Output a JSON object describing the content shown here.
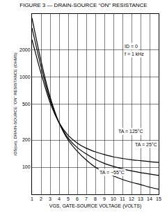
{
  "chart_data": {
    "type": "line",
    "title": "FIGURE 3 — DRAIN-SOURCE “ON” RESISTANCE",
    "x_label": "VGS, GATE-SOURCE VOLTAGE (VOLTS)",
    "y_label": "rDS(on), DRAIN-SOURCE “ON” RESISTANCE (OHMS)",
    "annotations": [
      "ID = 0",
      "f = 1 kHz"
    ],
    "x": [
      1,
      2,
      3,
      4,
      5,
      6,
      7,
      8,
      9,
      10,
      11,
      12,
      13,
      14,
      15
    ],
    "series": [
      {
        "name": "TA = 125°C",
        "color": "#000000",
        "values": [
          2600,
          1100,
          520,
          310,
          225,
          185,
          162,
          148,
          138,
          130,
          125,
          121,
          118,
          115,
          113
        ]
      },
      {
        "name": "TA = 25°C",
        "color": "#000000",
        "values": [
          3500,
          1300,
          560,
          310,
          210,
          165,
          140,
          122,
          110,
          102,
          96,
          91,
          87,
          84,
          81
        ]
      },
      {
        "name": "TA = −55°C",
        "color": "#000000",
        "values": [
          4500,
          1500,
          600,
          310,
          200,
          150,
          120,
          100,
          88,
          80,
          73,
          68,
          64,
          60,
          57
        ]
      }
    ],
    "xlim": [
      1,
      15
    ],
    "xticks": [
      1,
      2,
      3,
      4,
      5,
      6,
      7,
      8,
      9,
      10,
      11,
      12,
      13,
      14,
      15
    ],
    "ylim": [
      50,
      5000
    ],
    "yticks": [
      100,
      200,
      500,
      1000,
      2000
    ],
    "log": "y",
    "grid": true
  }
}
